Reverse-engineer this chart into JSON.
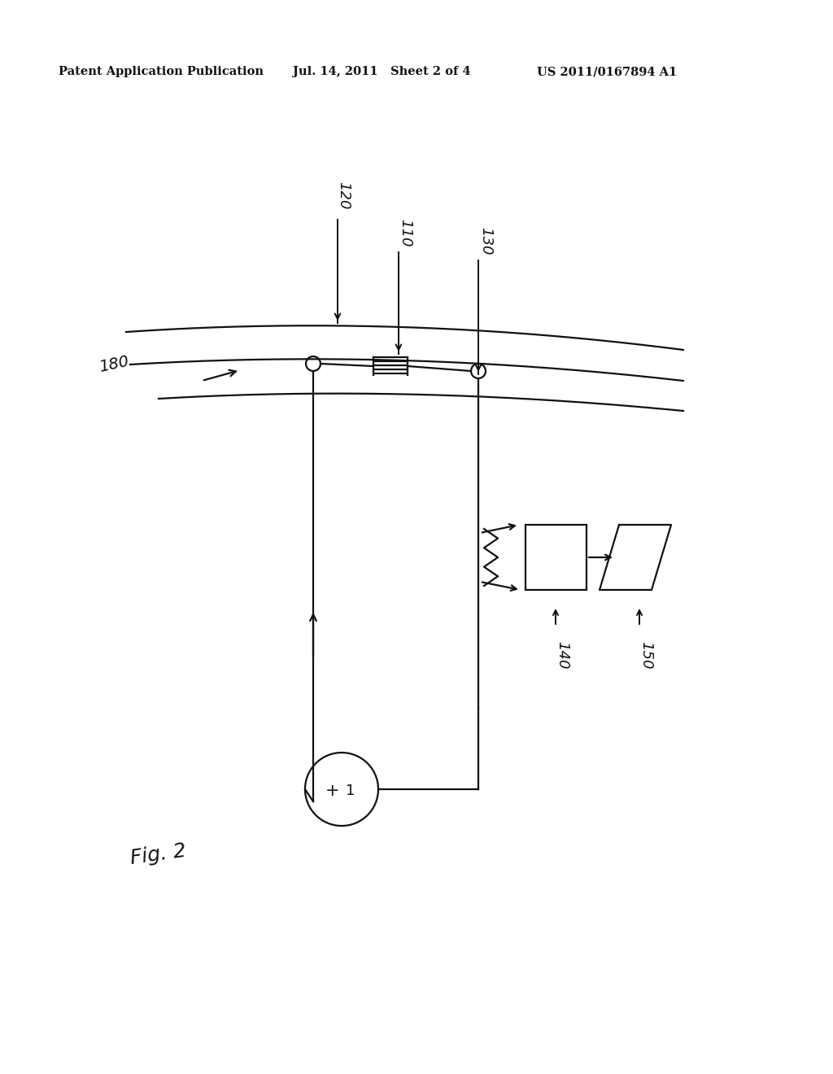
{
  "header_left": "Patent Application Publication",
  "header_mid": "Jul. 14, 2011   Sheet 2 of 4",
  "header_right": "US 2011/0167894 A1",
  "fig_label": "Fig. 2",
  "background": "#ffffff",
  "ink": "#111111",
  "label_120": "120",
  "label_110": "110",
  "label_130": "130",
  "label_180": "180",
  "label_140": "140",
  "label_150": "150",
  "header_lw": 0.8,
  "diagram_lw": 1.6
}
